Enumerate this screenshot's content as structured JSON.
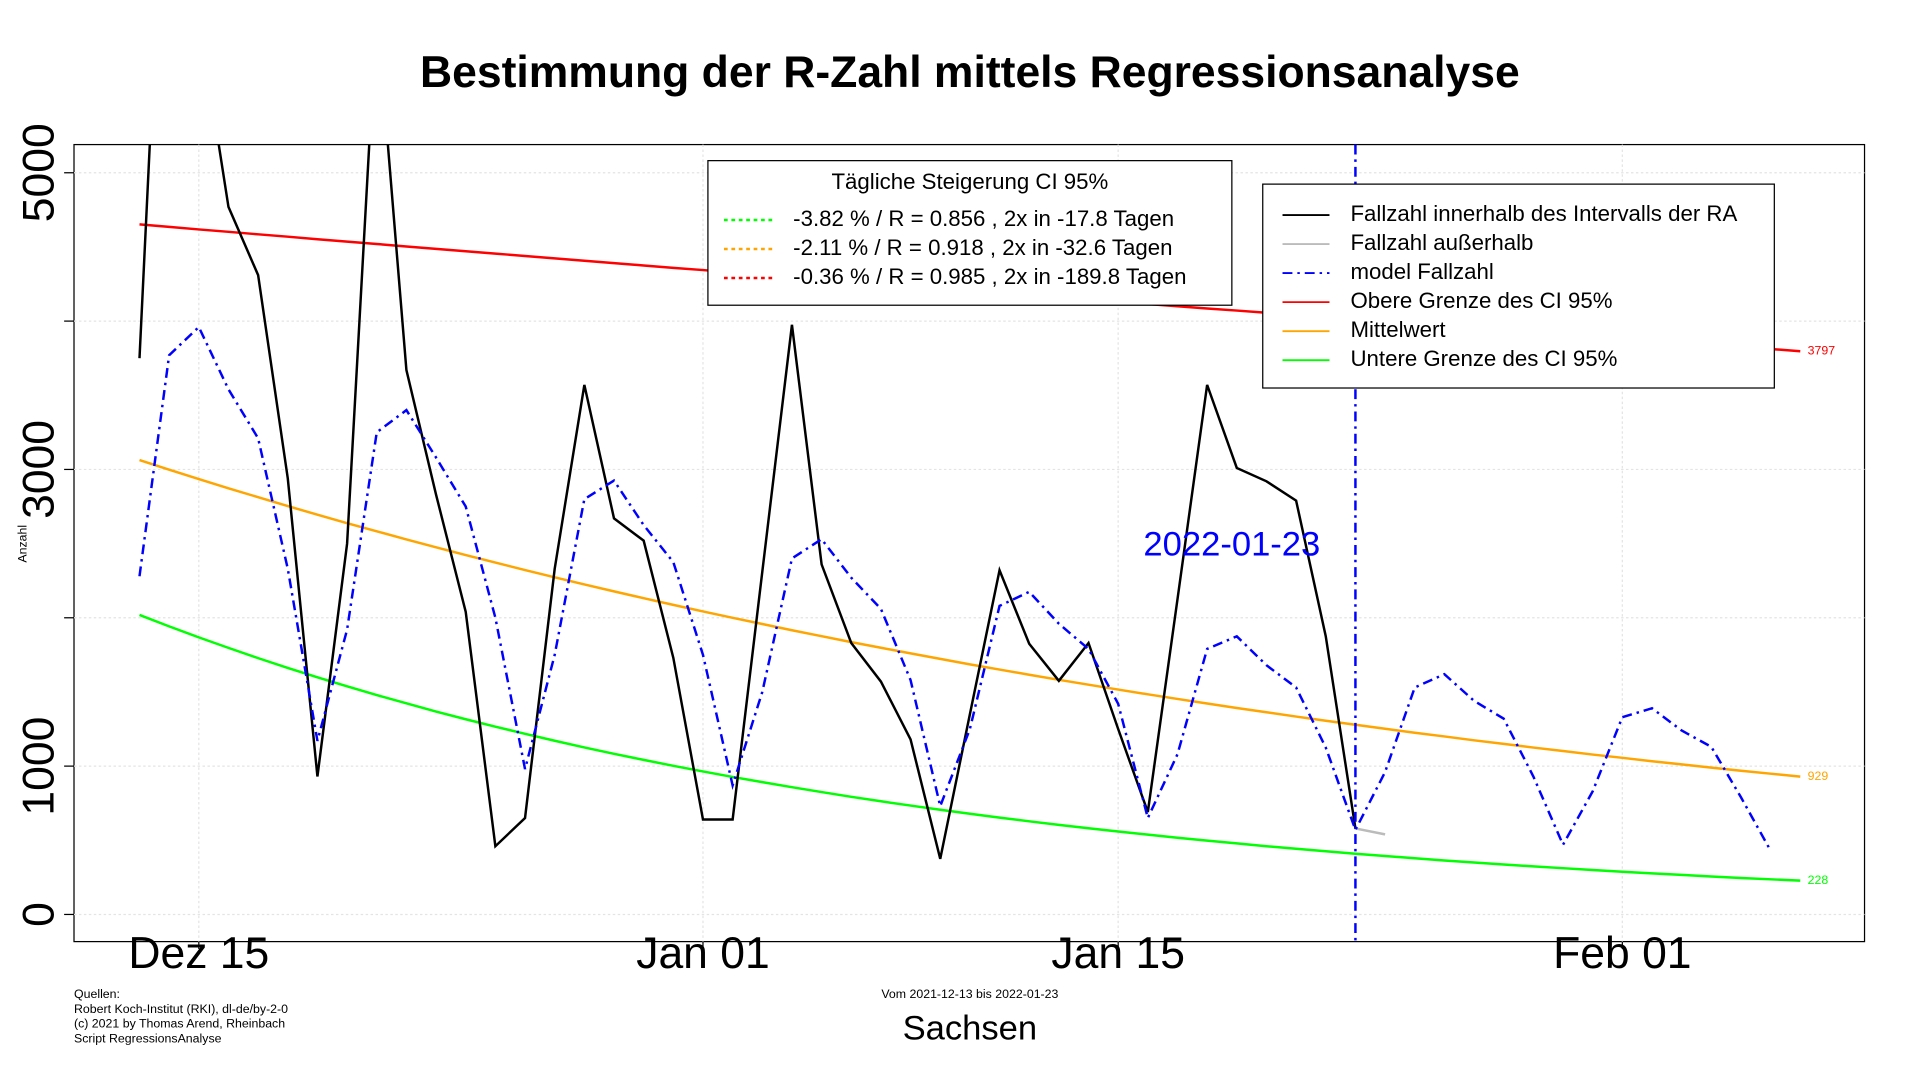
{
  "chart_data": {
    "type": "line",
    "title": "Bestimmung der R-Zahl mittels Regressionsanalyse",
    "subtitle": "Vom 2021-12-13 bis 2022-01-23",
    "xlabel": "Sachsen",
    "ylabel": "Anzahl",
    "sources": [
      "Quellen:",
      "Robert Koch-Institut (RKI), dl-de/by-2-0",
      "(c) 2021 by Thomas Arend, Rheinbach",
      "Script RegressionsAnalyse"
    ],
    "categories": [
      null,
      null,
      "Dez 15",
      null,
      null,
      null,
      null,
      null,
      null,
      null,
      null,
      null,
      null,
      null,
      null,
      null,
      null,
      null,
      null,
      "Jan 01",
      null,
      null,
      null,
      null,
      null,
      null,
      null,
      null,
      null,
      null,
      null,
      null,
      null,
      "Jan 15",
      null,
      null,
      null,
      null,
      null,
      null,
      null,
      null,
      null,
      null,
      null,
      null,
      null,
      null,
      null,
      null,
      "Feb 01",
      null,
      null,
      null,
      null,
      null,
      null
    ],
    "ylim": [
      -183,
      5190
    ],
    "yticks": [
      0,
      1000,
      {
        "value": 2000,
        "label": null
      },
      3000,
      {
        "value": 4000,
        "label": null
      },
      5000
    ],
    "grid": true,
    "series": [
      {
        "name": "Fallzahl innerhalb des Intervalls der RA",
        "color": "#000000",
        "dash": "solid",
        "values": [
          3750,
          7900,
          6050,
          4770,
          4310,
          2940,
          930,
          2500,
          6100,
          3670,
          2830,
          2040,
          460,
          650,
          2330,
          3570,
          2670,
          2520,
          1730,
          640,
          640,
          2310,
          3975,
          2360,
          1830,
          1570,
          1180,
          375,
          1350,
          2320,
          1825,
          1575,
          1830,
          1250,
          690,
          2125,
          3570,
          3010,
          2920,
          2790,
          1875,
          580,
          null,
          null,
          null,
          null,
          null,
          null,
          null,
          null,
          null,
          null,
          null,
          null,
          null,
          null,
          null
        ]
      },
      {
        "name": "Fallzahl außerhalb",
        "color": "#bbbbbb",
        "dash": "solid",
        "values": [
          null,
          null,
          null,
          null,
          null,
          null,
          null,
          null,
          null,
          null,
          null,
          null,
          null,
          null,
          null,
          null,
          null,
          null,
          null,
          null,
          null,
          null,
          null,
          null,
          null,
          null,
          null,
          null,
          null,
          null,
          null,
          null,
          null,
          null,
          null,
          null,
          null,
          null,
          null,
          null,
          null,
          580,
          540,
          null,
          null,
          null,
          null,
          null,
          null,
          null,
          null,
          null,
          null,
          null,
          null,
          null,
          null
        ]
      },
      {
        "name": "model Fallzahl",
        "color": "#0000ff",
        "dash": "dashdot",
        "values": [
          2280,
          3770,
          3960,
          3540,
          3210,
          2330,
          1170,
          1920,
          3250,
          3400,
          3080,
          2750,
          2000,
          980,
          1750,
          2800,
          2925,
          2625,
          2375,
          1750,
          870,
          1500,
          2400,
          2530,
          2270,
          2060,
          1580,
          730,
          1250,
          2080,
          2175,
          1960,
          1790,
          1420,
          650,
          1080,
          1790,
          1875,
          1680,
          1530,
          1125,
          570,
          960,
          1530,
          1620,
          1440,
          1320,
          930,
          470,
          830,
          1330,
          1390,
          1240,
          1130,
          790,
          430,
          null
        ]
      },
      {
        "name": "Obere Grenze des CI 95%",
        "color": "#ff0000",
        "dash": "solid",
        "end_label": true,
        "values": [
          4652,
          4635,
          4618,
          4602,
          4585,
          4569,
          4552,
          4536,
          4520,
          4503,
          4487,
          4471,
          4455,
          4439,
          4423,
          4407,
          4391,
          4375,
          4359,
          4344,
          4328,
          4312,
          4297,
          4281,
          4266,
          4251,
          4235,
          4220,
          4205,
          4190,
          4175,
          4160,
          4145,
          4130,
          4115,
          4100,
          4085,
          4071,
          4056,
          4041,
          4027,
          4012,
          3998,
          3984,
          3969,
          3955,
          3941,
          3927,
          3912,
          3898,
          3884,
          3870,
          3856,
          3842,
          3826,
          3812,
          3797
        ]
      },
      {
        "name": "Mittelwert",
        "color": "#ffa500",
        "dash": "solid",
        "end_label": true,
        "values": [
          3063,
          2998,
          2935,
          2873,
          2813,
          2753,
          2695,
          2638,
          2583,
          2528,
          2475,
          2423,
          2372,
          2322,
          2273,
          2225,
          2178,
          2132,
          2087,
          2043,
          2000,
          1958,
          1916,
          1876,
          1836,
          1798,
          1760,
          1723,
          1686,
          1651,
          1616,
          1582,
          1549,
          1516,
          1484,
          1453,
          1422,
          1392,
          1363,
          1334,
          1306,
          1279,
          1252,
          1225,
          1200,
          1174,
          1150,
          1125,
          1102,
          1078,
          1056,
          1033,
          1012,
          990,
          969,
          949,
          929
        ]
      },
      {
        "name": "Untere Grenze des CI 95%",
        "color": "#00ff00",
        "dash": "solid",
        "end_label": true,
        "values": [
          2019,
          1942,
          1868,
          1797,
          1728,
          1662,
          1599,
          1538,
          1479,
          1423,
          1368,
          1316,
          1266,
          1218,
          1171,
          1126,
          1083,
          1042,
          1002,
          964,
          927,
          892,
          858,
          825,
          793,
          763,
          734,
          706,
          679,
          653,
          628,
          604,
          581,
          559,
          538,
          517,
          498,
          479,
          460,
          443,
          426,
          409,
          394,
          379,
          364,
          350,
          337,
          324,
          312,
          300,
          288,
          277,
          267,
          256,
          246,
          237,
          228
        ]
      }
    ],
    "vline": {
      "at": 41,
      "label": "2022-01-23",
      "color": "#0000ff"
    },
    "ci_legend": {
      "title": "Tägliche Steigerung CI  95%",
      "entries": [
        {
          "label": "-3.82 % / R = 0.856 , 2x in -17.8 Tagen",
          "color": "#00ff00"
        },
        {
          "label": "-2.11 % / R = 0.918 , 2x in -32.6 Tagen",
          "color": "#ffa500"
        },
        {
          "label": "-0.36 % / R = 0.985 , 2x in -189.8 Tagen",
          "color": "#ff0000"
        }
      ]
    }
  }
}
